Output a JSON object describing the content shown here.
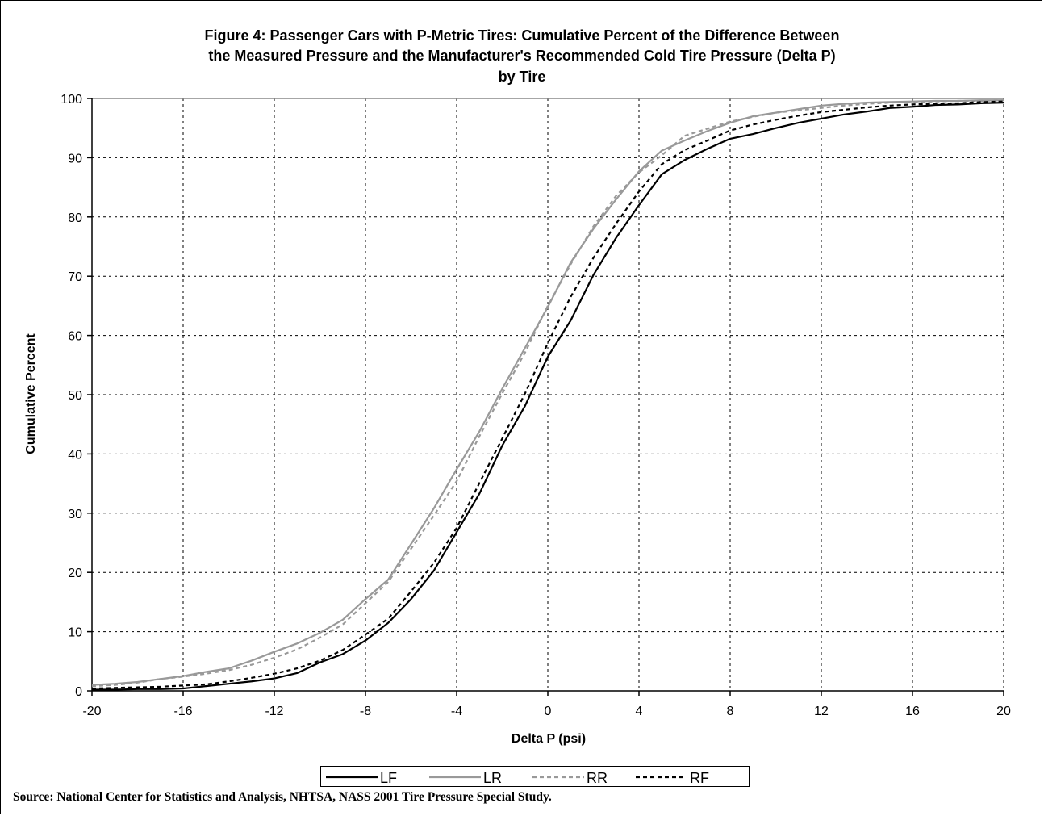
{
  "chart_data": {
    "type": "line",
    "title": [
      "Figure 4:  Passenger Cars with P-Metric Tires: Cumulative Percent of the Difference Between",
      "the Measured Pressure and the Manufacturer's Recommended Cold Tire Pressure (Delta P)",
      "by Tire"
    ],
    "xlabel": "Delta P (psi)",
    "ylabel": "Cumulative Percent",
    "xlim": [
      -20,
      20
    ],
    "ylim": [
      0,
      100
    ],
    "xticks": [
      -20,
      -16,
      -12,
      -8,
      -4,
      0,
      4,
      8,
      12,
      16,
      20
    ],
    "yticks": [
      0,
      10,
      20,
      30,
      40,
      50,
      60,
      70,
      80,
      90,
      100
    ],
    "grid": true,
    "legend_position": "bottom",
    "series": [
      {
        "name": "LF",
        "color": "#000000",
        "dash": "solid",
        "x": [
          -20,
          -19,
          -18,
          -17,
          -16,
          -15,
          -14,
          -13,
          -12,
          -11,
          -10,
          -9,
          -8,
          -7,
          -6,
          -5,
          -4,
          -3,
          -2,
          -1,
          0,
          1,
          2,
          3,
          4,
          5,
          6,
          7,
          8,
          9,
          10,
          11,
          12,
          13,
          14,
          15,
          16,
          17,
          18,
          19,
          20
        ],
        "y": [
          0.2,
          0.2,
          0.3,
          0.3,
          0.4,
          0.8,
          1.2,
          1.6,
          2.1,
          3.0,
          4.8,
          6.2,
          8.5,
          11.5,
          15.5,
          20.3,
          26.8,
          33.3,
          41.4,
          48.1,
          56.4,
          62.5,
          70.2,
          76.5,
          82.0,
          87.2,
          89.6,
          91.5,
          93.2,
          94.0,
          95.0,
          95.9,
          96.6,
          97.3,
          97.8,
          98.4,
          98.6,
          98.9,
          99.0,
          99.2,
          99.3
        ]
      },
      {
        "name": "LR",
        "color": "#999999",
        "dash": "solid",
        "x": [
          -20,
          -19,
          -18,
          -17,
          -16,
          -15,
          -14,
          -13,
          -12,
          -11,
          -10,
          -9,
          -8,
          -7,
          -6,
          -5,
          -4,
          -3,
          -2,
          -1,
          0,
          1,
          2,
          3,
          4,
          5,
          6,
          7,
          8,
          9,
          10,
          11,
          12,
          13,
          14,
          15,
          16,
          17,
          18,
          19,
          20
        ],
        "y": [
          1.0,
          1.2,
          1.5,
          2.0,
          2.5,
          3.2,
          3.8,
          5.1,
          6.6,
          8.0,
          9.8,
          12.0,
          15.5,
          18.8,
          24.8,
          30.8,
          37.4,
          43.8,
          51.0,
          57.9,
          64.8,
          72.3,
          78.0,
          83.0,
          87.7,
          91.2,
          92.9,
          94.5,
          95.9,
          97.0,
          97.6,
          98.2,
          98.8,
          99.1,
          99.3,
          99.4,
          99.5,
          99.6,
          99.6,
          99.7,
          99.7
        ]
      },
      {
        "name": "RR",
        "color": "#999999",
        "dash": "dashed",
        "x": [
          -20,
          -19,
          -18,
          -17,
          -16,
          -15,
          -14,
          -13,
          -12,
          -11,
          -10,
          -9,
          -8,
          -7,
          -6,
          -5,
          -4,
          -3,
          -2,
          -1,
          0,
          1,
          2,
          3,
          4,
          5,
          6,
          7,
          8,
          9,
          10,
          11,
          12,
          13,
          14,
          15,
          16,
          17,
          18,
          19,
          20
        ],
        "y": [
          0.8,
          1.0,
          1.4,
          2.0,
          2.4,
          2.9,
          3.5,
          4.4,
          5.6,
          7.0,
          9.0,
          11.2,
          14.8,
          18.4,
          24.0,
          29.6,
          35.4,
          43.0,
          50.2,
          57.1,
          65.0,
          72.0,
          78.4,
          83.6,
          87.5,
          90.4,
          93.7,
          94.9,
          96.1,
          96.9,
          97.6,
          98.0,
          98.4,
          98.8,
          99.1,
          99.3,
          99.4,
          99.5,
          99.6,
          99.6,
          99.7
        ]
      },
      {
        "name": "RF",
        "color": "#000000",
        "dash": "dashed",
        "x": [
          -20,
          -19,
          -18,
          -17,
          -16,
          -15,
          -14,
          -13,
          -12,
          -11,
          -10,
          -9,
          -8,
          -7,
          -6,
          -5,
          -4,
          -3,
          -2,
          -1,
          0,
          1,
          2,
          3,
          4,
          5,
          6,
          7,
          8,
          9,
          10,
          11,
          12,
          13,
          14,
          15,
          16,
          17,
          18,
          19,
          20
        ],
        "y": [
          0.4,
          0.5,
          0.6,
          0.7,
          0.9,
          1.1,
          1.6,
          2.2,
          2.9,
          3.8,
          5.1,
          6.9,
          9.5,
          12.2,
          16.8,
          21.6,
          27.5,
          35.1,
          42.6,
          50.2,
          58.7,
          66.5,
          73.1,
          78.9,
          84.3,
          88.9,
          91.3,
          92.9,
          94.6,
          95.6,
          96.4,
          97.1,
          97.7,
          98.1,
          98.5,
          98.8,
          99.0,
          99.1,
          99.2,
          99.4,
          99.5
        ]
      }
    ],
    "source_note": "Source: National Center for Statistics and Analysis, NHTSA, NASS 2001 Tire Pressure Special Study."
  }
}
